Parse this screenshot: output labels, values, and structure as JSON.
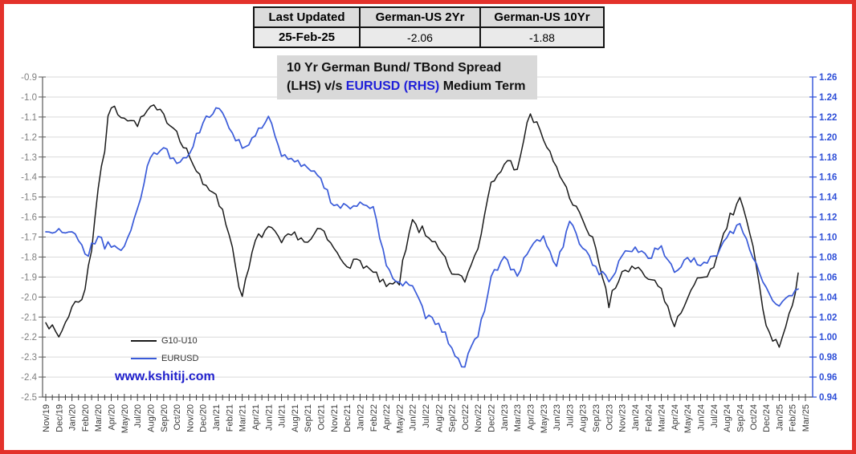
{
  "page": {
    "background": "#ffffff",
    "border_color": "#e3322b"
  },
  "header_table": {
    "columns": [
      {
        "title": "Last Updated",
        "value": "25-Feb-25"
      },
      {
        "title": "German-US 2Yr",
        "value": "-2.06"
      },
      {
        "title": "German-US 10Yr",
        "value": "-1.88"
      }
    ]
  },
  "title": {
    "line1": "10 Yr German Bund/ TBond Spread",
    "line2_prefix": "(LHS) v/s ",
    "line2_highlight": "EURUSD (RHS)",
    "line2_suffix": " Medium Term",
    "highlight_color": "#1f1fd9"
  },
  "footer": {
    "website": "www.kshitij.com",
    "color": "#1f1fcc"
  },
  "chart_data": {
    "type": "line",
    "title": "10 Yr German Bund/ TBond Spread (LHS) v/s EURUSD (RHS) Medium Term",
    "grid": "horizontal",
    "legend_position": "inside-bottom-left",
    "x_labels": [
      "Nov/19",
      "Dec/19",
      "Jan/20",
      "Feb/20",
      "Mar/20",
      "Apr/20",
      "May/20",
      "Jul/20",
      "Aug/20",
      "Sep/20",
      "Oct/20",
      "Nov/20",
      "Dec/20",
      "Jan/21",
      "Feb/21",
      "Mar/21",
      "Apr/21",
      "Jun/21",
      "Jul/21",
      "Aug/21",
      "Sep/21",
      "Oct/21",
      "Nov/21",
      "Dec/21",
      "Jan/22",
      "Feb/22",
      "Apr/22",
      "May/22",
      "Jun/22",
      "Jul/22",
      "Aug/22",
      "Sep/22",
      "Oct/22",
      "Nov/22",
      "Dec/22",
      "Jan/23",
      "Mar/23",
      "Apr/23",
      "May/23",
      "Jun/23",
      "Jul/23",
      "Aug/23",
      "Sep/23",
      "Oct/23",
      "Nov/23",
      "Jan/24",
      "Feb/24",
      "Mar/24",
      "Apr/24",
      "May/24",
      "Jun/24",
      "Jul/24",
      "Aug/24",
      "Sep/24",
      "Oct/24",
      "Dec/24",
      "Jan/25",
      "Feb/25",
      "Mar/25"
    ],
    "left_axis": {
      "min": -2.5,
      "max": -0.9,
      "tick_step": 0.1,
      "color": "#7f7f7f",
      "labels": [
        "-0.9",
        "-1.0",
        "-1.1",
        "-1.2",
        "-1.3",
        "-1.4",
        "-1.5",
        "-1.6",
        "-1.7",
        "-1.8",
        "-1.9",
        "-2.0",
        "-2.1",
        "-2.2",
        "-2.3",
        "-2.4",
        "-2.5"
      ]
    },
    "right_axis": {
      "min": 0.94,
      "max": 1.26,
      "tick_step": 0.02,
      "color": "#2e4fd8",
      "labels": [
        "1.26",
        "1.24",
        "1.22",
        "1.20",
        "1.18",
        "1.16",
        "1.14",
        "1.12",
        "1.10",
        "1.08",
        "1.06",
        "1.04",
        "1.02",
        "1.00",
        "0.98",
        "0.96",
        "0.94"
      ]
    },
    "series": [
      {
        "name": "G10-U10",
        "axis": "left",
        "color": "#1a1a1a",
        "values": [
          -2.12,
          -2.2,
          -2.05,
          -1.98,
          -1.45,
          -1.05,
          -1.1,
          -1.14,
          -1.05,
          -1.09,
          -1.17,
          -1.3,
          -1.44,
          -1.48,
          -1.68,
          -2.0,
          -1.72,
          -1.65,
          -1.73,
          -1.68,
          -1.73,
          -1.66,
          -1.76,
          -1.84,
          -1.82,
          -1.88,
          -1.95,
          -1.93,
          -1.6,
          -1.7,
          -1.76,
          -1.88,
          -1.92,
          -1.75,
          -1.42,
          -1.33,
          -1.35,
          -1.08,
          -1.22,
          -1.35,
          -1.5,
          -1.62,
          -1.75,
          -2.05,
          -1.87,
          -1.86,
          -1.91,
          -1.96,
          -2.15,
          -2.0,
          -1.9,
          -1.86,
          -1.65,
          -1.5,
          -1.75,
          -2.15,
          -2.25,
          -2.05
        ],
        "end": {
          "x_index": 57.45,
          "value": -1.88
        }
      },
      {
        "name": "EURUSD",
        "axis": "right",
        "color": "#3a5bd9",
        "values": [
          1.105,
          1.11,
          1.105,
          1.085,
          1.1,
          1.09,
          1.09,
          1.13,
          1.18,
          1.19,
          1.175,
          1.185,
          1.215,
          1.23,
          1.21,
          1.19,
          1.2,
          1.22,
          1.18,
          1.175,
          1.17,
          1.16,
          1.13,
          1.13,
          1.135,
          1.13,
          1.07,
          1.055,
          1.05,
          1.02,
          1.015,
          0.99,
          0.97,
          1.0,
          1.06,
          1.08,
          1.06,
          1.09,
          1.1,
          1.07,
          1.115,
          1.09,
          1.07,
          1.055,
          1.08,
          1.09,
          1.08,
          1.09,
          1.065,
          1.08,
          1.07,
          1.08,
          1.1,
          1.115,
          1.08,
          1.05,
          1.03,
          1.04
        ],
        "end": {
          "x_index": 57.45,
          "value": 1.048
        }
      }
    ]
  }
}
